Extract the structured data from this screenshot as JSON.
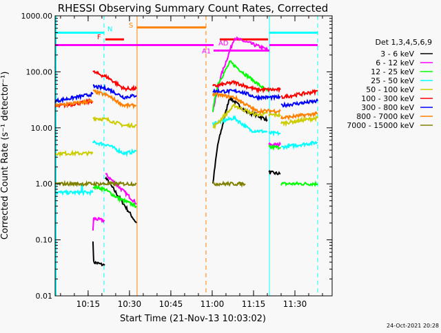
{
  "chart_data": {
    "type": "line",
    "title": "RHESSI Observing Summary Count Rates, Corrected",
    "xlabel": "Start Time (21-Nov-13 10:03:02)",
    "ylabel": "Corrected Count Rate (s⁻¹ detector⁻¹)",
    "yscale": "log",
    "ylim": [
      0.01,
      1000
    ],
    "xlim_minutes_after_10_00": [
      3.03,
      103.5
    ],
    "y_ticks": [
      {
        "v": 1000,
        "label": "1000.00"
      },
      {
        "v": 100,
        "label": "100.00"
      },
      {
        "v": 10,
        "label": "10.00"
      },
      {
        "v": 1,
        "label": "1.00"
      },
      {
        "v": 0.1,
        "label": "0.10"
      },
      {
        "v": 0.01,
        "label": "0.01"
      }
    ],
    "x_ticks": [
      {
        "t": 15,
        "label": "10:15"
      },
      {
        "t": 30,
        "label": "10:30"
      },
      {
        "t": 45,
        "label": "10:45"
      },
      {
        "t": 60,
        "label": "11:00"
      },
      {
        "t": 75,
        "label": "11:15"
      },
      {
        "t": 90,
        "label": "11:30"
      }
    ],
    "legend": {
      "placement": "right",
      "title": "Det 1,3,4,5,6,9"
    },
    "series": [
      {
        "name": "3 - 6 keV",
        "color": "#000000",
        "segments": [
          [
            [
              16.75,
              0.1
            ],
            [
              17,
              0.04
            ],
            [
              21,
              0.035
            ]
          ],
          [
            [
              21.25,
              1.3
            ],
            [
              26,
              0.6
            ],
            [
              32.5,
              0.2
            ]
          ],
          [
            [
              60.25,
              1.0
            ],
            [
              62,
              5
            ],
            [
              66.25,
              35
            ],
            [
              72,
              20
            ],
            [
              80,
              14
            ]
          ],
          [
            [
              80.5,
              1.6
            ],
            [
              84.75,
              1.5
            ]
          ]
        ]
      },
      {
        "name": "6 - 12 keV",
        "color": "#ff00ff",
        "segments": [
          [
            [
              16.75,
              0.15
            ],
            [
              17,
              0.24
            ],
            [
              21,
              0.22
            ]
          ],
          [
            [
              21.25,
              1.5
            ],
            [
              26,
              0.9
            ],
            [
              32.5,
              0.45
            ]
          ],
          [
            [
              60.25,
              20
            ],
            [
              63,
              80
            ],
            [
              68,
              400
            ],
            [
              74,
              320
            ],
            [
              80,
              250
            ]
          ],
          [
            [
              80.5,
              5
            ],
            [
              84.75,
              5
            ]
          ]
        ]
      },
      {
        "name": "12 - 25 keV",
        "color": "#00ff00",
        "segments": [
          [
            [
              16.75,
              0.9
            ],
            [
              21,
              0.8
            ],
            [
              26,
              0.55
            ],
            [
              32.5,
              0.4
            ]
          ],
          [
            [
              60.25,
              20
            ],
            [
              62,
              60
            ],
            [
              66.5,
              150
            ],
            [
              72,
              90
            ],
            [
              80,
              45
            ]
          ],
          [
            [
              80.5,
              4.5
            ],
            [
              84.75,
              4.5
            ]
          ],
          [
            [
              85,
              1
            ],
            [
              98.25,
              1
            ]
          ]
        ]
      },
      {
        "name": "25 - 50 keV",
        "color": "#00ffff",
        "segments": [
          [
            [
              3.03,
              0.7
            ],
            [
              12.5,
              0.7
            ],
            [
              12.75,
              1.0
            ],
            [
              13,
              0.7
            ],
            [
              16.7,
              0.7
            ]
          ],
          [
            [
              16.75,
              5.5
            ],
            [
              22,
              5
            ],
            [
              28,
              3.5
            ],
            [
              32.5,
              3.8
            ]
          ],
          [
            [
              60.25,
              12
            ],
            [
              68,
              15
            ],
            [
              74,
              9
            ],
            [
              80,
              8.5
            ]
          ],
          [
            [
              80.5,
              8
            ],
            [
              84.75,
              8
            ]
          ],
          [
            [
              85,
              4.5
            ],
            [
              98.25,
              5.5
            ]
          ]
        ]
      },
      {
        "name": "50 - 100 keV",
        "color": "#cccc00",
        "segments": [
          [
            [
              3.03,
              3.5
            ],
            [
              16.7,
              3.5
            ]
          ],
          [
            [
              16.75,
              15
            ],
            [
              22,
              14
            ],
            [
              28,
              11
            ],
            [
              32.5,
              11
            ]
          ],
          [
            [
              60.25,
              10
            ],
            [
              68,
              25
            ],
            [
              76,
              17
            ],
            [
              80,
              18
            ]
          ],
          [
            [
              80.5,
              17
            ],
            [
              84.75,
              17
            ]
          ],
          [
            [
              85,
              12
            ],
            [
              98.25,
              15
            ]
          ]
        ]
      },
      {
        "name": "100 - 300 keV",
        "color": "#ff0000",
        "segments": [
          [
            [
              3.03,
              24
            ],
            [
              16.7,
              30
            ]
          ],
          [
            [
              16.75,
              100
            ],
            [
              22,
              80
            ],
            [
              28,
              50
            ],
            [
              32.5,
              50
            ]
          ],
          [
            [
              60.25,
              55
            ],
            [
              68,
              65
            ],
            [
              76,
              48
            ],
            [
              84.75,
              48
            ]
          ],
          [
            [
              85,
              35
            ],
            [
              98.25,
              45
            ]
          ]
        ]
      },
      {
        "name": "300 - 800 keV",
        "color": "#0000ff",
        "segments": [
          [
            [
              3.03,
              30
            ],
            [
              16.7,
              40
            ]
          ],
          [
            [
              16.75,
              55
            ],
            [
              22,
              50
            ],
            [
              28,
              35
            ],
            [
              32.5,
              38
            ]
          ],
          [
            [
              60.25,
              45
            ],
            [
              70,
              45
            ],
            [
              76,
              35
            ],
            [
              84.75,
              35
            ]
          ],
          [
            [
              85,
              25
            ],
            [
              98.25,
              30
            ]
          ]
        ]
      },
      {
        "name": "800 - 7000 keV",
        "color": "#ff8000",
        "segments": [
          [
            [
              3.03,
              25
            ],
            [
              16.7,
              30
            ]
          ],
          [
            [
              16.75,
              45
            ],
            [
              22,
              38
            ],
            [
              28,
              25
            ],
            [
              32.5,
              25
            ]
          ],
          [
            [
              60.25,
              40
            ],
            [
              68,
              35
            ],
            [
              76,
              20
            ],
            [
              84.75,
              20
            ]
          ],
          [
            [
              85,
              15
            ],
            [
              98.25,
              18
            ]
          ]
        ]
      },
      {
        "name": "7000 - 15000 keV",
        "color": "#808000",
        "segments": [
          [
            [
              3.03,
              1.0
            ],
            [
              16.7,
              1.0
            ]
          ],
          [
            [
              16.75,
              1.0
            ],
            [
              32.5,
              1.0
            ]
          ],
          [
            [
              60.25,
              1.0
            ],
            [
              72,
              1.0
            ]
          ]
        ]
      }
    ],
    "vertical_markers": [
      {
        "t": 20.75,
        "color": "#00ffff",
        "style": "dashed"
      },
      {
        "t": 32.75,
        "color": "#ff8000",
        "style": "solid"
      },
      {
        "t": 57.75,
        "color": "#ff8000",
        "style": "dashed"
      },
      {
        "t": 80.75,
        "color": "#00ffff",
        "style": "solid"
      },
      {
        "t": 98.25,
        "color": "#00ffff",
        "style": "dashed"
      }
    ],
    "flag_bars": [
      {
        "label": "N",
        "color": "#00ffff",
        "level": 500,
        "ranges": [
          [
            3.03,
            20.75
          ],
          [
            80.75,
            98.25
          ]
        ]
      },
      {
        "label": "S",
        "color": "#ff8000",
        "level": 620,
        "ranges": [
          [
            32.75,
            57.75
          ]
        ]
      },
      {
        "label": "F",
        "color": "#ff0000",
        "level": 380,
        "ranges": [
          [
            21.25,
            28
          ]
        ]
      },
      {
        "label": "",
        "color": "#ff00ff",
        "level": 300,
        "ranges": [
          [
            3.03,
            60.5
          ],
          [
            80.75,
            98.25
          ]
        ]
      },
      {
        "label": "AD",
        "color": "#ff0000",
        "level": 380,
        "ranges": [
          [
            62.75,
            80.25
          ]
        ]
      },
      {
        "label": "A1",
        "color": "#ff00ff",
        "level": 240,
        "ranges": [
          [
            60.5,
            80.75
          ]
        ]
      }
    ]
  },
  "footer": {
    "date": "24-Oct-2021 20:28"
  }
}
